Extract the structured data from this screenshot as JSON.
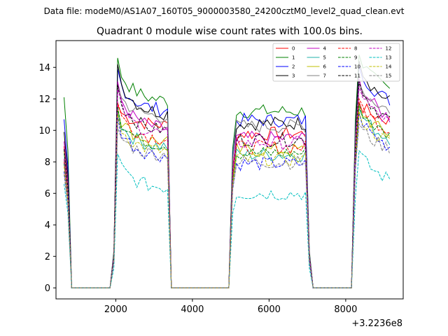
{
  "chart_data": {
    "type": "line",
    "suptitle": "Data file: modeM0/AS1A07_160T05_9000003580_24200cztM0_level2_quad_clean.evt",
    "title": "Quadrant 0 module wise count rates with 100.0s bins.",
    "xlabel": "",
    "ylabel": "",
    "offset_text": "+3.2236e8",
    "xlim": [
      440,
      9500
    ],
    "ylim": [
      -0.7,
      15.7
    ],
    "xticks": [
      2000,
      4000,
      6000,
      8000
    ],
    "xtick_labels": [
      "2000",
      "4000",
      "6000",
      "8000"
    ],
    "yticks": [
      0,
      2,
      4,
      6,
      8,
      10,
      12,
      14
    ],
    "ytick_labels": [
      "0",
      "2",
      "4",
      "6",
      "8",
      "10",
      "12",
      "14"
    ],
    "grid": false,
    "legend_position": "top-right",
    "segments": [
      [
        650,
        850
      ],
      [
        1850,
        3450
      ],
      [
        4950,
        7050
      ],
      [
        8150,
        9150
      ]
    ],
    "series": [
      {
        "name": "0",
        "color": "#ff0000",
        "dash": "solid",
        "level": 10.3,
        "start": 9.0,
        "peak": 11.6
      },
      {
        "name": "1",
        "color": "#008000",
        "dash": "solid",
        "level": 11.8,
        "start": 12.1,
        "peak": 14.6
      },
      {
        "name": "2",
        "color": "#0000ff",
        "dash": "solid",
        "level": 11.2,
        "start": 10.7,
        "peak": 13.9
      },
      {
        "name": "3",
        "color": "#000000",
        "dash": "solid",
        "level": 11.0,
        "start": 9.9,
        "peak": 14.2
      },
      {
        "name": "4",
        "color": "#c000c0",
        "dash": "solid",
        "level": 10.0,
        "start": 9.3,
        "peak": 13.1
      },
      {
        "name": "5",
        "color": "#20b2aa",
        "dash": "solid",
        "level": 8.9,
        "start": 8.5,
        "peak": 11.2
      },
      {
        "name": "6",
        "color": "#bfbf00",
        "dash": "solid",
        "level": 9.2,
        "start": 8.7,
        "peak": 11.4
      },
      {
        "name": "7",
        "color": "#808080",
        "dash": "solid",
        "level": 10.8,
        "start": 8.1,
        "peak": 12.8
      },
      {
        "name": "8",
        "color": "#ff0000",
        "dash": "dashed",
        "level": 9.4,
        "start": 8.0,
        "peak": 11.8
      },
      {
        "name": "9",
        "color": "#008000",
        "dash": "dashed",
        "level": 9.0,
        "start": 7.9,
        "peak": 11.5
      },
      {
        "name": "10",
        "color": "#0000ff",
        "dash": "dashed",
        "level": 8.3,
        "start": 7.4,
        "peak": 10.9
      },
      {
        "name": "11",
        "color": "#000000",
        "dash": "dashed",
        "level": 9.9,
        "start": 8.8,
        "peak": 12.9
      },
      {
        "name": "12",
        "color": "#c000c0",
        "dash": "dashed",
        "level": 9.7,
        "start": 8.2,
        "peak": 12.6
      },
      {
        "name": "13",
        "color": "#00bfbf",
        "dash": "dashed",
        "level": 6.3,
        "start": 6.6,
        "peak": 8.5
      },
      {
        "name": "14",
        "color": "#bfbf00",
        "dash": "dashed",
        "level": 8.6,
        "start": 7.7,
        "peak": 11.0
      },
      {
        "name": "15",
        "color": "#808080",
        "dash": "dashed",
        "level": 8.4,
        "start": 7.2,
        "peak": 10.2
      }
    ]
  }
}
